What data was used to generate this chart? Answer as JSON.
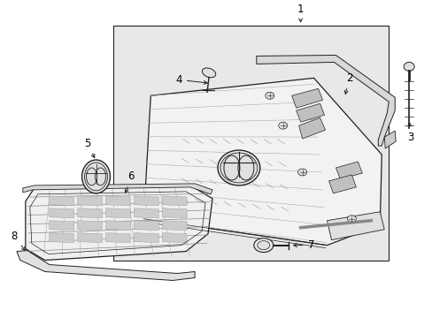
{
  "background_color": "#ffffff",
  "box_bg": "#e8e8e8",
  "line_color": "#222222",
  "text_color": "#000000",
  "figsize": [
    4.89,
    3.6
  ],
  "dpi": 100
}
